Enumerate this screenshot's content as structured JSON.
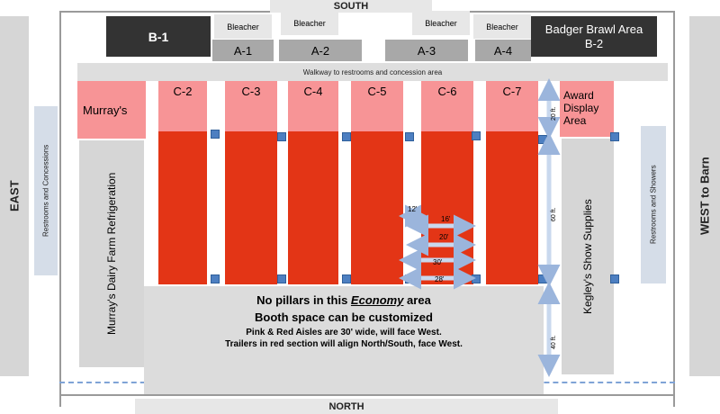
{
  "compass": {
    "south": "SOUTH",
    "north": "NORTH",
    "east": "EAST",
    "west": "WEST to Barn"
  },
  "top_row": {
    "b1": "B-1",
    "b2_line1": "Badger Brawl Area",
    "b2_line2": "B-2",
    "bleacher": "Bleacher",
    "a1": "A-1",
    "a2": "A-2",
    "a3": "A-3",
    "a4": "A-4"
  },
  "walkway": "Walkway to restrooms and concession area",
  "murrays": "Murray's",
  "award": {
    "line1": "Award",
    "line2": "Display",
    "line3": "Area"
  },
  "aisles": [
    "C-2",
    "C-3",
    "C-4",
    "C-5",
    "C-6",
    "C-7"
  ],
  "restrooms_concessions": "Restrooms and Concessions",
  "restrooms_showers": "Restrooms and Showers",
  "murrays_refrigeration": "Murray's Dairy Farm Refrigeration",
  "kegleys": "Kegley's Show Supplies",
  "economy": {
    "line1_pre": "No pillars in this ",
    "line1_em": "Economy",
    "line1_post": " area",
    "line2": "Booth space can be customized",
    "line3": "Pink & Red Aisles are 30' wide, will face West.",
    "line4": "Trailers in red section will align North/South, face West."
  },
  "trailer_widths": [
    "12'",
    "16'",
    "20'",
    "30'",
    "28'"
  ],
  "dimensions": [
    "20 ft.",
    "60 ft.",
    "40 ft."
  ],
  "colors": {
    "pink": "#f79496",
    "red": "#e33516",
    "dark": "#333333",
    "gray": "#d6d6d6",
    "marker": "#4d7fc1",
    "arrow": "#c9d8ee"
  }
}
